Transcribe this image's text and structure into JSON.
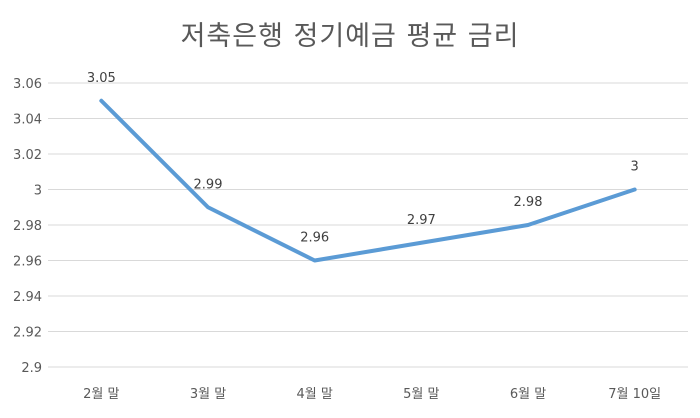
{
  "chart_data": {
    "type": "line",
    "title": "저축은행 정기예금 평균 금리",
    "categories": [
      "2월 말",
      "3월 말",
      "4월 말",
      "5월 말",
      "6월 말",
      "7월 10일"
    ],
    "values": [
      3.05,
      2.99,
      2.96,
      2.97,
      2.98,
      3
    ],
    "data_labels": [
      "3.05",
      "2.99",
      "2.96",
      "2.97",
      "2.98",
      "3"
    ],
    "ylim": [
      2.9,
      3.06
    ],
    "yticks": [
      2.9,
      2.92,
      2.94,
      2.96,
      2.98,
      3,
      3.02,
      3.04,
      3.06
    ],
    "ytick_labels": [
      "2.9",
      "2.92",
      "2.94",
      "2.96",
      "2.98",
      "3",
      "3.02",
      "3.04",
      "3.06"
    ],
    "grid": true,
    "legend": "none",
    "line_color": "#5b9bd5",
    "grid_color": "#d9d9d9"
  }
}
